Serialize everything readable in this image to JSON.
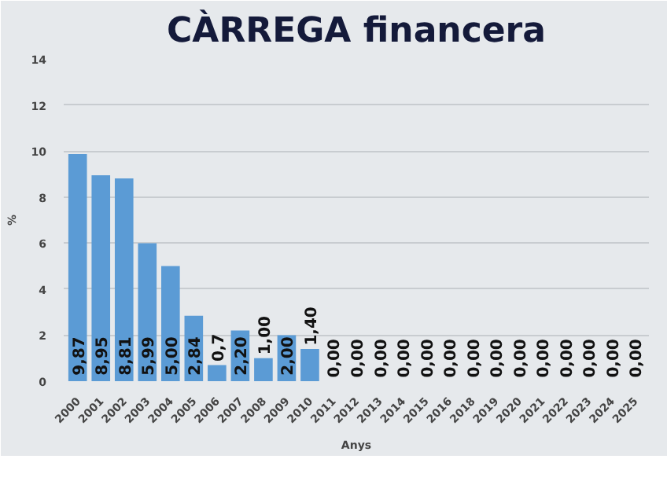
{
  "chart_data": {
    "type": "bar",
    "title": "CÀRREGA financera",
    "xlabel": "Anys",
    "ylabel": "%",
    "categories": [
      "2000",
      "2001",
      "2002",
      "2003",
      "2004",
      "2005",
      "2006",
      "2007",
      "2008",
      "2009",
      "2010",
      "2011",
      "2012",
      "2013",
      "2014",
      "2015",
      "2016",
      "2018",
      "2019",
      "2020",
      "2021",
      "2022",
      "2023",
      "2024",
      "2025"
    ],
    "values": [
      9.87,
      8.95,
      8.81,
      5.99,
      5.0,
      2.84,
      0.7,
      2.2,
      1.0,
      2.0,
      1.4,
      0,
      0,
      0,
      0,
      0,
      0,
      0,
      0,
      0,
      0,
      0,
      0,
      0,
      0
    ],
    "value_labels": [
      "9,87",
      "8,95",
      "8,81",
      "5,99",
      "5,00",
      "2,84",
      "0,7",
      "2,20",
      "1,00",
      "2,00",
      "1,40",
      "0,00",
      "0,00",
      "0,00",
      "0,00",
      "0,00",
      "0,00",
      "0,00",
      "0,00",
      "0,00",
      "0,00",
      "0,00",
      "0,00",
      "0,00",
      "0,00"
    ],
    "color": "#5b9bd5",
    "ylim": [
      0,
      14
    ],
    "yticks": [
      0,
      2,
      4,
      6,
      8,
      10,
      12,
      14
    ],
    "grid": "y"
  }
}
